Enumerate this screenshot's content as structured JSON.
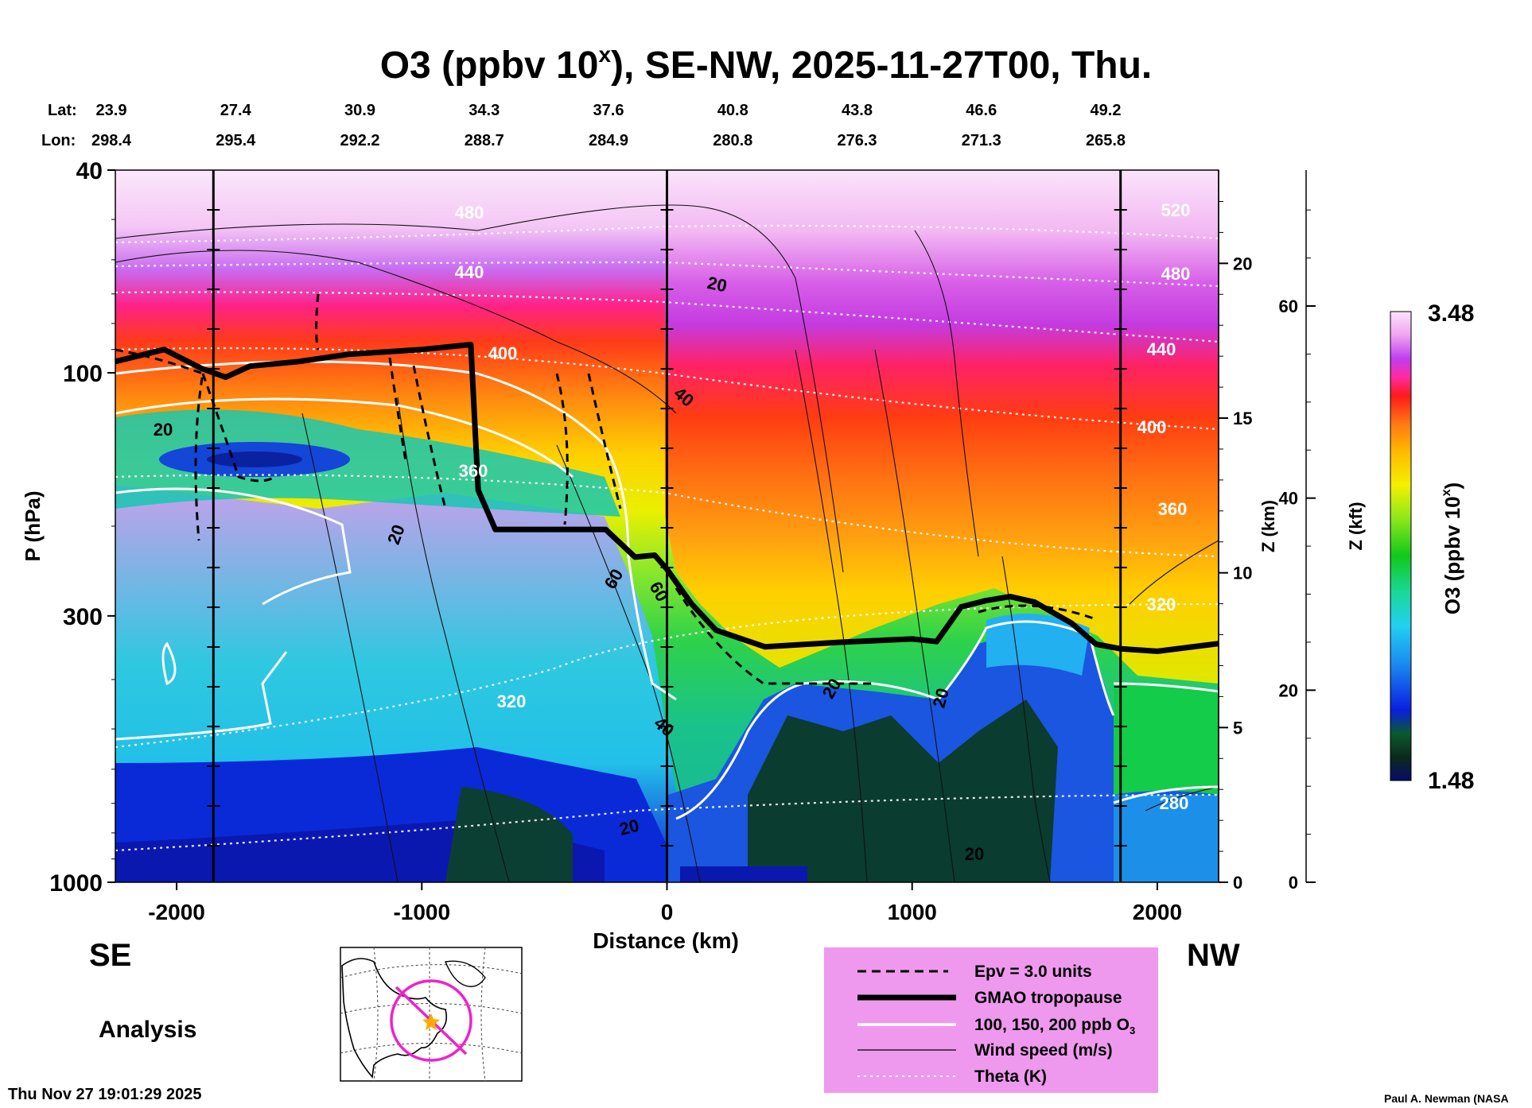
{
  "title": {
    "main": "O3 (ppbv 10",
    "sup": "x",
    "rest": "), SE-NW, 2025-11-27T00, Thu."
  },
  "coords": {
    "lat_label": "Lat:",
    "lon_label": "Lon:",
    "lat": [
      "23.9",
      "27.4",
      "30.9",
      "34.3",
      "37.6",
      "40.8",
      "43.8",
      "46.6",
      "49.2"
    ],
    "lon": [
      "298.4",
      "295.4",
      "292.2",
      "288.7",
      "284.9",
      "280.8",
      "276.3",
      "271.3",
      "265.8"
    ]
  },
  "axes": {
    "ylabel": "P (hPa)",
    "xlabel": "Distance (km)",
    "zkm_label": "Z (km)",
    "zkft_label": "Z (kft)",
    "cbar_label": "O3 (ppbv 10",
    "cbar_sup": "x",
    "cbar_max": "3.48",
    "cbar_min": "1.48"
  },
  "labels": {
    "left_dir": "SE",
    "right_dir": "NW",
    "analysis": "Analysis",
    "timestamp": "Thu Nov 27 19:01:29 2025",
    "credit": "Paul A. Newman (NASA"
  },
  "legend": [
    {
      "style": "epv",
      "label": "Epv = 3.0 units"
    },
    {
      "style": "tropopause",
      "label": "GMAO tropopause"
    },
    {
      "style": "ozone",
      "label": "100, 150, 200 ppb O",
      "sub": "3"
    },
    {
      "style": "wind",
      "label": "Wind speed (m/s)"
    },
    {
      "style": "theta",
      "label": "Theta (K)"
    }
  ],
  "contour_labels": {
    "theta": [
      "480",
      "440",
      "400",
      "360",
      "320",
      "520",
      "480",
      "440",
      "400",
      "360",
      "320",
      "280"
    ],
    "wind": [
      "20",
      "20",
      "40",
      "20",
      "60",
      "60",
      "40",
      "20",
      "20",
      "20",
      "20"
    ]
  },
  "colors": {
    "legend_bg": "#ee99ee",
    "tropopause": "#000000",
    "ozone_contour": "#ffffff"
  },
  "chart_data": {
    "type": "heatmap",
    "title": "O3 (ppbv 10^x), SE-NW, 2025-11-27T00, Thu.",
    "xlabel": "Distance (km)",
    "ylabel": "P (hPa)",
    "x_ticks": [
      -2000,
      -1000,
      0,
      1000,
      2000
    ],
    "xlim": [
      -2250,
      2250
    ],
    "y_ticks": [
      40,
      100,
      300,
      1000
    ],
    "ylim": [
      1000,
      40
    ],
    "y_scale": "log",
    "z_km_ticks": [
      0,
      5,
      10,
      15,
      20
    ],
    "z_kft_ticks": [
      0,
      20,
      40,
      60
    ],
    "colorbar": {
      "label": "O3 (ppbv 10^x)",
      "min": 1.48,
      "max": 3.48
    },
    "tropopause": {
      "x": [
        -2250,
        -2050,
        -1900,
        -1800,
        -1700,
        -1500,
        -1300,
        -1000,
        -800,
        -770,
        -700,
        -250,
        -130,
        -50,
        0,
        100,
        200,
        400,
        700,
        1000,
        1100,
        1200,
        1300,
        1400,
        1500,
        1650,
        1750,
        1850,
        2000,
        2250
      ],
      "p": [
        95,
        90,
        98,
        102,
        97,
        95,
        92,
        90,
        88,
        170,
        203,
        203,
        230,
        228,
        243,
        284,
        320,
        345,
        338,
        333,
        337,
        288,
        280,
        275,
        282,
        310,
        341,
        348,
        352,
        340
      ]
    },
    "theta_levels_K": [
      520,
      480,
      440,
      400,
      360,
      320,
      280
    ],
    "wind_levels_ms": [
      20,
      40,
      60
    ],
    "ozone_contours_ppb": [
      100,
      150,
      200
    ],
    "epv_contour_units": 3.0
  }
}
